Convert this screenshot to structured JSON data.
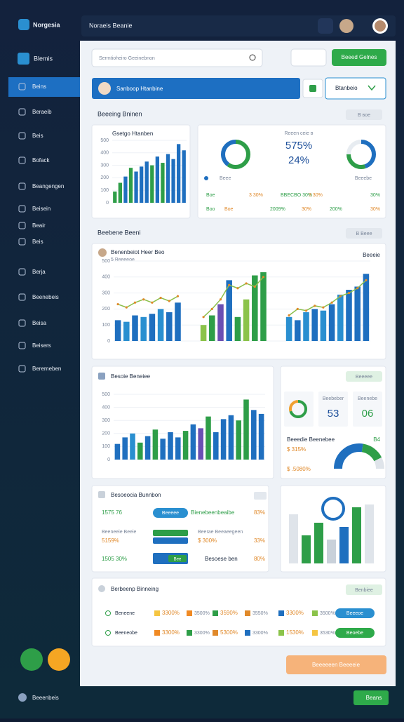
{
  "app": {
    "logo": "Norgesia",
    "header_title": "Noraeis Beanie"
  },
  "sidebar": {
    "title": "Blemis",
    "items": [
      "Beins",
      "Beraeib",
      "Beis",
      "Bofack",
      "Beangengen",
      "Beisein",
      "Beair",
      "Beis",
      "Berja",
      "Beenebeis",
      "Beisa",
      "Beisers",
      "Beremeben"
    ]
  },
  "toolbar": {
    "search": "Sermtioheiro Geeinebnon",
    "primary_button": "Beeed Gelnes",
    "banner": "Sanboop Htanbine",
    "select": "Btanbeio"
  },
  "section1": {
    "title": "Beeeing Bninen",
    "pill": "Β ʙoe"
  },
  "card1": {
    "title": "Gsetgo Htanben",
    "ylim": [
      0,
      500
    ],
    "yticks": [
      0,
      100,
      200,
      300,
      400,
      500
    ],
    "values": [
      90,
      160,
      210,
      280,
      250,
      290,
      330,
      300,
      370,
      320,
      390,
      350,
      470,
      420
    ],
    "colors": [
      "#2e9e48",
      "#2e9e48",
      "#1f6fbf",
      "#2e9e48",
      "#1f6fbf",
      "#1f6fbf",
      "#1f6fbf",
      "#2e9e48",
      "#1f6fbf",
      "#2e9e48",
      "#1f6fbf",
      "#1f6fbf",
      "#1f6fbf",
      "#1f6fbf"
    ]
  },
  "card2": {
    "label_top": "Reeen ceie ʙ",
    "big_value": "575%",
    "big_value2": "24%",
    "label_left": "Beee",
    "label_right": "Beeebe",
    "donut_left": {
      "values": [
        60,
        40
      ],
      "colors": [
        "#2e9e48",
        "#1f6fbf"
      ]
    },
    "donut_right": {
      "values": [
        45,
        30,
        25
      ],
      "colors": [
        "#1f6fbf",
        "#2e9e48",
        "#e7ecf1"
      ]
    },
    "rows": [
      [
        "Boe",
        "3 30%",
        "BBECBO 30%",
        "3 30%",
        "30%"
      ],
      [
        "Boo",
        "Boe",
        "2009%",
        "30%",
        "200%",
        "30%"
      ]
    ]
  },
  "section2": {
    "title": "Beebene Beeni",
    "pill": "Β Beee"
  },
  "card3": {
    "title": "Benenbeiot Heer Beo",
    "subtitle": "5 Beeeeoe",
    "right_label": "Beeeie",
    "ylim": [
      0,
      500
    ],
    "yticks": [
      0,
      100,
      200,
      300,
      400,
      500
    ],
    "values": [
      130,
      120,
      160,
      150,
      170,
      200,
      180,
      240,
      null,
      null,
      100,
      160,
      230,
      380,
      150,
      260,
      410,
      430,
      null,
      null,
      150,
      130,
      180,
      200,
      190,
      230,
      290,
      320,
      340,
      420
    ],
    "colors": [
      "#1f6fbf",
      "#2a8fd0",
      "#1f6fbf",
      "#2a8fd0",
      "#1f6fbf",
      "#2a8fd0",
      "#1f6fbf",
      "#1f6fbf",
      null,
      null,
      "#8bc34a",
      "#2e9e48",
      "#6a4fb3",
      "#1f6fbf",
      "#2e9e48",
      "#8bc34a",
      "#2e9e48",
      "#2e9e48",
      null,
      null,
      "#2a8fd0",
      "#1f6fbf",
      "#2a8fd0",
      "#1f6fbf",
      "#2a8fd0",
      "#1f6fbf",
      "#2a8fd0",
      "#1f6fbf",
      "#1f6fbf",
      "#1f6fbf"
    ],
    "line": [
      230,
      210,
      240,
      260,
      240,
      270,
      250,
      280,
      null,
      null,
      150,
      200,
      260,
      350,
      330,
      360,
      340,
      400,
      null,
      null,
      160,
      200,
      190,
      220,
      210,
      240,
      280,
      300,
      330,
      380
    ],
    "line_color": "#8bbf4a"
  },
  "card4": {
    "title": "Besoie Beneiee",
    "ylim": [
      0,
      500
    ],
    "yticks": [
      0,
      100,
      200,
      300,
      400,
      500
    ],
    "values": [
      120,
      170,
      200,
      130,
      180,
      230,
      160,
      210,
      170,
      220,
      270,
      240,
      330,
      210,
      310,
      340,
      300,
      460,
      380,
      350
    ],
    "colors": [
      "#1f6fbf",
      "#1f6fbf",
      "#2a8fd0",
      "#2e9e48",
      "#1f6fbf",
      "#2e9e48",
      "#1f6fbf",
      "#1f6fbf",
      "#1f6fbf",
      "#2e9e48",
      "#1f6fbf",
      "#6a4fb3",
      "#2e9e48",
      "#1f6fbf",
      "#1f6fbf",
      "#1f6fbf",
      "#2e9e48",
      "#2e9e48",
      "#1f6fbf",
      "#1f6fbf"
    ]
  },
  "card5": {
    "pill": "Beeeee",
    "label1": "Beebeber",
    "value1": "53",
    "label2": "Beenebe",
    "value2": "06",
    "label3": "Beeedie Beenebee",
    "label4": "B4",
    "stat1": "$ 315%",
    "stat2": "$ .5080%",
    "donut": {
      "values": [
        70,
        30
      ],
      "colors": [
        "#2e9e48",
        "#f0a030"
      ]
    },
    "half_donut": {
      "values": [
        55,
        30,
        15
      ],
      "colors": [
        "#1f6fbf",
        "#2e9e48",
        "#dfe4ea"
      ]
    }
  },
  "card6": {
    "title": "Besoeocia Bunnbon",
    "rows": [
      {
        "left": "1575 76",
        "chip": "Beeeee",
        "text": "Bienebeenbeaibe",
        "value": "83%"
      },
      {
        "left": "Beeneeie Beeie",
        "left2": "5159%",
        "text": "Beerae Beeaeegeen",
        "text2": "$ 300%",
        "value": "33%"
      },
      {
        "left": "1505 30%",
        "chip": "Bee",
        "text": "Besoese ben",
        "value": "80%"
      }
    ]
  },
  "card7": {
    "values": [
      70,
      40,
      58,
      34,
      52,
      80,
      84
    ],
    "colors": [
      "#dfe4ea",
      "#2e9e48",
      "#2e9e48",
      "#c9d1da",
      "#1f6fbf",
      "#2e9e48",
      "#dfe4ea"
    ]
  },
  "card8": {
    "title": "Berbeenp Binneing",
    "pill": "Benbiee",
    "rows": [
      {
        "name": "Beneene",
        "cells": [
          "3300%",
          "3500%",
          "3590%",
          "3550%",
          "3300%",
          "3500%"
        ],
        "button": "Beeeoe"
      },
      {
        "name": "Beeneobe",
        "cells": [
          "3300%",
          "3300%",
          "5300%",
          "3300%",
          "1530%",
          "3530%"
        ],
        "button": "Beoebe"
      }
    ]
  },
  "cta": "Beeeeeen Beeeeie",
  "footer": {
    "label": "Beeenbeis",
    "button": "Beans"
  }
}
